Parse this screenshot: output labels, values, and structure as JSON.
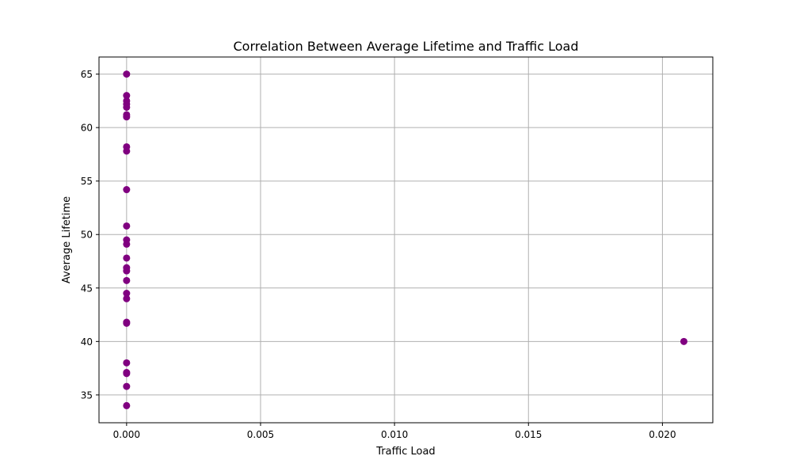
{
  "chart_data": {
    "type": "scatter",
    "title": "Correlation Between Average Lifetime and Traffic Load",
    "xlabel": "Traffic Load",
    "ylabel": "Average Lifetime",
    "xlim": [
      -0.00103,
      0.02188
    ],
    "ylim": [
      32.4,
      66.6
    ],
    "xticks": [
      0.0,
      0.005,
      0.01,
      0.015,
      0.02
    ],
    "xtick_labels": [
      "0.000",
      "0.005",
      "0.010",
      "0.015",
      "0.020"
    ],
    "yticks": [
      35,
      40,
      45,
      50,
      55,
      60,
      65
    ],
    "ytick_labels": [
      "35",
      "40",
      "45",
      "50",
      "55",
      "60",
      "65"
    ],
    "grid": true,
    "marker_color": "#800080",
    "points": [
      {
        "x": 0,
        "y": 65.0
      },
      {
        "x": 0,
        "y": 63.0
      },
      {
        "x": 0,
        "y": 62.5
      },
      {
        "x": 0,
        "y": 62.2
      },
      {
        "x": 0,
        "y": 61.9
      },
      {
        "x": 0,
        "y": 61.2
      },
      {
        "x": 0,
        "y": 61.0
      },
      {
        "x": 0,
        "y": 58.2
      },
      {
        "x": 0,
        "y": 57.8
      },
      {
        "x": 0,
        "y": 54.2
      },
      {
        "x": 0,
        "y": 50.8
      },
      {
        "x": 0,
        "y": 49.5
      },
      {
        "x": 0,
        "y": 49.1
      },
      {
        "x": 0,
        "y": 47.8
      },
      {
        "x": 0,
        "y": 46.9
      },
      {
        "x": 0,
        "y": 46.6
      },
      {
        "x": 0,
        "y": 45.7
      },
      {
        "x": 0,
        "y": 44.5
      },
      {
        "x": 0,
        "y": 44.0
      },
      {
        "x": 0,
        "y": 41.8
      },
      {
        "x": 0,
        "y": 41.7
      },
      {
        "x": 0.0208,
        "y": 40.0
      },
      {
        "x": 0,
        "y": 38.0
      },
      {
        "x": 0,
        "y": 37.1
      },
      {
        "x": 0,
        "y": 37.0
      },
      {
        "x": 0,
        "y": 35.8
      },
      {
        "x": 0,
        "y": 34.0
      }
    ]
  }
}
